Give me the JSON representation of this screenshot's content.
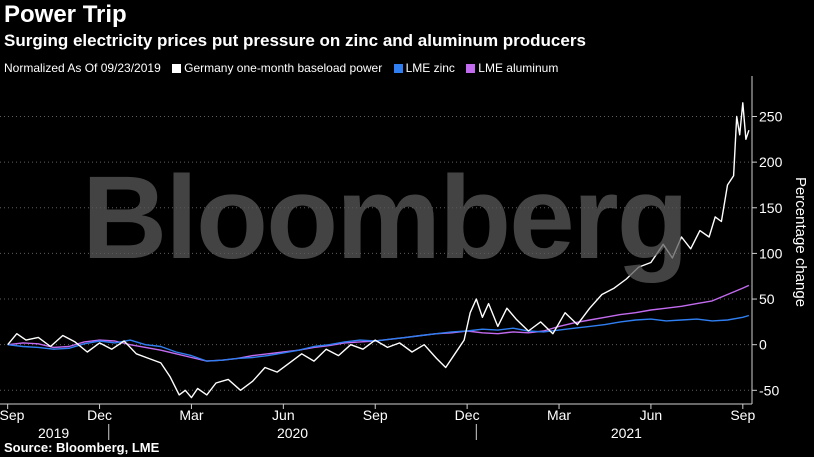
{
  "header": {
    "title": "Power Trip",
    "subtitle": "Surging electricity prices put pressure on zinc and aluminum producers"
  },
  "watermark": "Bloomberg",
  "source": "Source: Bloomberg, LME",
  "chart_data": {
    "type": "line",
    "title": "Power Trip",
    "subtitle": "Surging electricity prices put pressure on zinc and aluminum producers",
    "note": "Normalized As Of 09/23/2019",
    "ylabel": "Percentage change",
    "y_axis_position": "right",
    "ylim": [
      -65,
      290
    ],
    "yticks": [
      -50,
      0,
      50,
      100,
      150,
      200,
      250
    ],
    "grid": "horizontal dotted",
    "legend_position": "top-left",
    "xrange_months": [
      -0.25,
      24.3
    ],
    "month_ticks": [
      {
        "m": 0,
        "label": "Sep"
      },
      {
        "m": 3,
        "label": "Dec"
      },
      {
        "m": 6,
        "label": "Mar"
      },
      {
        "m": 9,
        "label": "Jun"
      },
      {
        "m": 12,
        "label": "Sep"
      },
      {
        "m": 15,
        "label": "Dec"
      },
      {
        "m": 18,
        "label": "Mar"
      },
      {
        "m": 21,
        "label": "Jun"
      },
      {
        "m": 24,
        "label": "Sep"
      }
    ],
    "year_labels": [
      {
        "m": 1.5,
        "label": "2019"
      },
      {
        "m": 9.3,
        "label": "2020"
      },
      {
        "m": 20.2,
        "label": "2021"
      }
    ],
    "year_dividers": [
      3.3,
      15.3
    ],
    "series": [
      {
        "name": "Germany one-month baseload power",
        "color": "#ffffff",
        "x": [
          0,
          0.3,
          0.6,
          1,
          1.4,
          1.8,
          2.2,
          2.6,
          3,
          3.4,
          3.8,
          4.2,
          4.6,
          5,
          5.3,
          5.6,
          5.8,
          6,
          6.2,
          6.5,
          6.8,
          7.2,
          7.6,
          8,
          8.4,
          8.8,
          9.2,
          9.6,
          10,
          10.4,
          10.8,
          11.2,
          11.6,
          12,
          12.4,
          12.8,
          13.2,
          13.6,
          14,
          14.3,
          14.6,
          14.9,
          15.1,
          15.3,
          15.5,
          15.7,
          16,
          16.3,
          16.6,
          17,
          17.4,
          17.8,
          18.2,
          18.6,
          19,
          19.4,
          19.8,
          20.2,
          20.6,
          21,
          21.4,
          21.7,
          22,
          22.3,
          22.6,
          22.9,
          23.1,
          23.3,
          23.5,
          23.7,
          23.8,
          23.9,
          24,
          24.1,
          24.2
        ],
        "values": [
          0,
          12,
          5,
          8,
          -2,
          10,
          3,
          -8,
          2,
          -5,
          4,
          -10,
          -15,
          -20,
          -35,
          -55,
          -50,
          -58,
          -48,
          -55,
          -42,
          -38,
          -50,
          -40,
          -25,
          -30,
          -20,
          -10,
          -18,
          -5,
          -12,
          0,
          -5,
          5,
          -3,
          2,
          -8,
          0,
          -15,
          -25,
          -10,
          5,
          35,
          50,
          30,
          45,
          20,
          40,
          28,
          15,
          25,
          12,
          35,
          22,
          40,
          55,
          62,
          72,
          85,
          90,
          110,
          95,
          118,
          105,
          125,
          118,
          140,
          135,
          175,
          185,
          250,
          230,
          265,
          225,
          235
        ]
      },
      {
        "name": "LME zinc",
        "color": "#2f7ff2",
        "x": [
          0,
          0.5,
          1,
          1.5,
          2,
          2.5,
          3,
          3.5,
          4,
          4.5,
          5,
          5.5,
          6,
          6.5,
          7,
          7.5,
          8,
          8.5,
          9,
          9.5,
          10,
          10.5,
          11,
          11.5,
          12,
          12.5,
          13,
          13.5,
          14,
          14.5,
          15,
          15.5,
          16,
          16.5,
          17,
          17.5,
          18,
          18.5,
          19,
          19.5,
          20,
          20.5,
          21,
          21.5,
          22,
          22.5,
          23,
          23.5,
          24,
          24.2
        ],
        "values": [
          0,
          -2,
          -3,
          -5,
          -4,
          1,
          4,
          2,
          5,
          0,
          -2,
          -8,
          -12,
          -18,
          -17,
          -15,
          -14,
          -12,
          -9,
          -6,
          -2,
          0,
          3,
          5,
          4,
          6,
          8,
          10,
          12,
          14,
          15,
          17,
          16,
          18,
          15,
          14,
          16,
          18,
          20,
          22,
          25,
          27,
          28,
          26,
          27,
          28,
          26,
          27,
          30,
          32
        ]
      },
      {
        "name": "LME aluminum",
        "color": "#c36bf0",
        "x": [
          0,
          0.5,
          1,
          1.5,
          2,
          2.5,
          3,
          3.5,
          4,
          4.5,
          5,
          5.5,
          6,
          6.5,
          7,
          7.5,
          8,
          8.5,
          9,
          9.5,
          10,
          10.5,
          11,
          11.5,
          12,
          12.5,
          13,
          13.5,
          14,
          14.5,
          15,
          15.5,
          16,
          16.5,
          17,
          17.5,
          18,
          18.5,
          19,
          19.5,
          20,
          20.5,
          21,
          21.5,
          22,
          22.5,
          23,
          23.5,
          24,
          24.2
        ],
        "values": [
          0,
          2,
          1,
          -3,
          -2,
          3,
          5,
          4,
          0,
          -3,
          -6,
          -10,
          -14,
          -18,
          -17,
          -15,
          -12,
          -10,
          -8,
          -6,
          -3,
          -1,
          2,
          3,
          4,
          6,
          8,
          10,
          12,
          13,
          15,
          13,
          12,
          14,
          13,
          15,
          20,
          24,
          27,
          30,
          33,
          35,
          38,
          40,
          42,
          45,
          48,
          55,
          62,
          65
        ]
      }
    ]
  }
}
